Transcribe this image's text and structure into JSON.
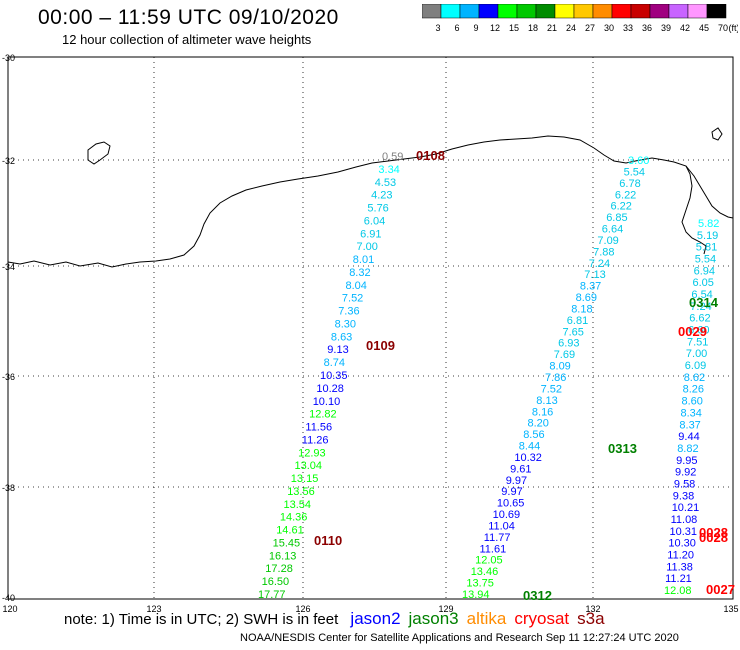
{
  "title": "00:00 – 11:59 UTC 09/10/2020",
  "subtitle": "12 hour collection of altimeter wave heights",
  "colorbar": {
    "colors": [
      "#7f7f7f",
      "#00ffff",
      "#00b4ff",
      "#0000ff",
      "#00ff00",
      "#00c800",
      "#008c00",
      "#ffff00",
      "#ffc800",
      "#ff8c00",
      "#ff0000",
      "#c80000",
      "#a00080",
      "#c864ff",
      "#ff96ff",
      "#000000"
    ],
    "labels": [
      "3",
      "6",
      "9",
      "12",
      "15",
      "18",
      "21",
      "24",
      "27",
      "30",
      "33",
      "36",
      "39",
      "42",
      "45",
      "70",
      "(ft)"
    ]
  },
  "axes": {
    "lat_labels": [
      "-30",
      "-32",
      "-34",
      "-36",
      "-38",
      "-40"
    ],
    "lon_labels": [
      "120",
      "123",
      "126",
      "129",
      "132",
      "135"
    ]
  },
  "passes": {
    "0108": {
      "label": "0108",
      "color": "#8b0000"
    },
    "0109": {
      "label": "0109",
      "color": "#8b0000"
    },
    "0110": {
      "label": "0110",
      "color": "#8b0000"
    },
    "0312": {
      "label": "0312",
      "color": "#008000"
    },
    "0313": {
      "label": "0313",
      "color": "#008000"
    },
    "0314": {
      "label": "0314",
      "color": "#008000"
    },
    "0029": {
      "label": "0029",
      "color": "#ff0000"
    },
    "0028a": {
      "label": "0028",
      "color": "#ff0000"
    },
    "0028b": {
      "label": "0028",
      "color": "#ff0000"
    },
    "0027": {
      "label": "0027",
      "color": "#ff0000"
    }
  },
  "track_west": [
    {
      "v": "0.59",
      "c": "#7f7f7f"
    },
    {
      "v": "3.34",
      "c": "#00ffff"
    },
    {
      "v": "4.53",
      "c": "#00c8e6"
    },
    {
      "v": "4.23",
      "c": "#00c8e6"
    },
    {
      "v": "5.76",
      "c": "#00c8e6"
    },
    {
      "v": "6.04",
      "c": "#00c8e6"
    },
    {
      "v": "6.91",
      "c": "#00c8e6"
    },
    {
      "v": "7.00",
      "c": "#00c8e6"
    },
    {
      "v": "8.01",
      "c": "#00b4ff"
    },
    {
      "v": "8.32",
      "c": "#00b4ff"
    },
    {
      "v": "8.04",
      "c": "#00b4ff"
    },
    {
      "v": "7.52",
      "c": "#00b4ff"
    },
    {
      "v": "7.36",
      "c": "#00b4ff"
    },
    {
      "v": "8.30",
      "c": "#00b4ff"
    },
    {
      "v": "8.63",
      "c": "#00b4ff"
    },
    {
      "v": "9.13",
      "c": "#0000ff"
    },
    {
      "v": "8.74",
      "c": "#00b4ff"
    },
    {
      "v": "10.35",
      "c": "#0000ff"
    },
    {
      "v": "10.28",
      "c": "#0000ff"
    },
    {
      "v": "10.10",
      "c": "#0000ff"
    },
    {
      "v": "12.82",
      "c": "#00ff00"
    },
    {
      "v": "11.56",
      "c": "#0000ff"
    },
    {
      "v": "11.26",
      "c": "#0000ff"
    },
    {
      "v": "12.93",
      "c": "#00ff00"
    },
    {
      "v": "13.04",
      "c": "#00ff00"
    },
    {
      "v": "13.15",
      "c": "#00ff00"
    },
    {
      "v": "13.56",
      "c": "#00ff00"
    },
    {
      "v": "13.54",
      "c": "#00ff00"
    },
    {
      "v": "14.36",
      "c": "#00ff00"
    },
    {
      "v": "14.61",
      "c": "#00ff00"
    },
    {
      "v": "15.45",
      "c": "#00c800"
    },
    {
      "v": "16.13",
      "c": "#00c800"
    },
    {
      "v": "17.28",
      "c": "#00c800"
    },
    {
      "v": "16.50",
      "c": "#00c800"
    },
    {
      "v": "17.77",
      "c": "#00c800"
    }
  ],
  "track_east_a": [
    {
      "v": "3.60",
      "c": "#00ffff"
    },
    {
      "v": "5.54",
      "c": "#00c8e6"
    },
    {
      "v": "6.78",
      "c": "#00c8e6"
    },
    {
      "v": "6.22",
      "c": "#00c8e6"
    },
    {
      "v": "6.22",
      "c": "#00c8e6"
    },
    {
      "v": "6.85",
      "c": "#00c8e6"
    },
    {
      "v": "6.64",
      "c": "#00c8e6"
    },
    {
      "v": "7.09",
      "c": "#00c8e6"
    },
    {
      "v": "7.88",
      "c": "#00c8e6"
    },
    {
      "v": "7.24",
      "c": "#00c8e6"
    },
    {
      "v": "7.13",
      "c": "#00c8e6"
    },
    {
      "v": "8.37",
      "c": "#00b4ff"
    },
    {
      "v": "8.69",
      "c": "#00b4ff"
    },
    {
      "v": "8.18",
      "c": "#00b4ff"
    },
    {
      "v": "6.81",
      "c": "#00c8e6"
    },
    {
      "v": "7.65",
      "c": "#00c8e6"
    },
    {
      "v": "6.93",
      "c": "#00c8e6"
    },
    {
      "v": "7.69",
      "c": "#00c8e6"
    },
    {
      "v": "8.09",
      "c": "#00b4ff"
    },
    {
      "v": "7.86",
      "c": "#00b4ff"
    },
    {
      "v": "7.52",
      "c": "#00b4ff"
    },
    {
      "v": "8.13",
      "c": "#00b4ff"
    },
    {
      "v": "8.16",
      "c": "#00b4ff"
    },
    {
      "v": "8.20",
      "c": "#00b4ff"
    },
    {
      "v": "8.56",
      "c": "#00b4ff"
    },
    {
      "v": "8.44",
      "c": "#00b4ff"
    },
    {
      "v": "10.32",
      "c": "#0000ff"
    },
    {
      "v": "9.61",
      "c": "#0000ff"
    },
    {
      "v": "9.97",
      "c": "#0000ff"
    },
    {
      "v": "9.97",
      "c": "#0000ff"
    },
    {
      "v": "10.65",
      "c": "#0000ff"
    },
    {
      "v": "10.69",
      "c": "#0000ff"
    },
    {
      "v": "11.04",
      "c": "#0000ff"
    },
    {
      "v": "11.77",
      "c": "#0000ff"
    },
    {
      "v": "11.61",
      "c": "#0000ff"
    },
    {
      "v": "12.05",
      "c": "#00ff00"
    },
    {
      "v": "13.46",
      "c": "#00ff00"
    },
    {
      "v": "13.75",
      "c": "#00ff00"
    },
    {
      "v": "13.94",
      "c": "#00ff00"
    }
  ],
  "track_east_b": [
    {
      "v": "5.82",
      "c": "#00ffff"
    },
    {
      "v": "5.19",
      "c": "#00c8e6"
    },
    {
      "v": "5.81",
      "c": "#00c8e6"
    },
    {
      "v": "5.54",
      "c": "#00c8e6"
    },
    {
      "v": "6.94",
      "c": "#00c8e6"
    },
    {
      "v": "6.05",
      "c": "#00c8e6"
    },
    {
      "v": "6.54",
      "c": "#00c8e6"
    },
    {
      "v": "7.24",
      "c": "#00c8e6"
    },
    {
      "v": "6.62",
      "c": "#00c8e6"
    },
    {
      "v": "6.60",
      "c": "#00c8e6"
    },
    {
      "v": "7.51",
      "c": "#00c8e6"
    },
    {
      "v": "7.00",
      "c": "#00c8e6"
    },
    {
      "v": "6.09",
      "c": "#00c8e6"
    },
    {
      "v": "8.62",
      "c": "#00b4ff"
    },
    {
      "v": "8.26",
      "c": "#00b4ff"
    },
    {
      "v": "8.60",
      "c": "#00b4ff"
    },
    {
      "v": "8.34",
      "c": "#00b4ff"
    },
    {
      "v": "8.37",
      "c": "#00b4ff"
    },
    {
      "v": "9.44",
      "c": "#0000ff"
    },
    {
      "v": "8.82",
      "c": "#00b4ff"
    },
    {
      "v": "9.95",
      "c": "#0000ff"
    },
    {
      "v": "9.92",
      "c": "#0000ff"
    },
    {
      "v": "9.58",
      "c": "#0000ff"
    },
    {
      "v": "9.38",
      "c": "#0000ff"
    },
    {
      "v": "10.21",
      "c": "#0000ff"
    },
    {
      "v": "11.08",
      "c": "#0000ff"
    },
    {
      "v": "10.31",
      "c": "#0000ff"
    },
    {
      "v": "10.30",
      "c": "#0000ff"
    },
    {
      "v": "11.20",
      "c": "#0000ff"
    },
    {
      "v": "11.38",
      "c": "#0000ff"
    },
    {
      "v": "11.21",
      "c": "#0000ff"
    },
    {
      "v": "12.08",
      "c": "#00ff00"
    }
  ],
  "note": {
    "text": "note:  1) Time is in UTC;  2) SWH is in feet",
    "legend": [
      {
        "name": "jason2",
        "color": "#0000ff"
      },
      {
        "name": "jason3",
        "color": "#008000"
      },
      {
        "name": "altika",
        "color": "#ff8c00"
      },
      {
        "name": "cryosat",
        "color": "#ff0000"
      },
      {
        "name": "s3a",
        "color": "#8b0000"
      }
    ]
  },
  "footer": "NOAA/NESDIS Center for Satellite Applications and Research     Sep 11 12:27:24 UTC 2020"
}
